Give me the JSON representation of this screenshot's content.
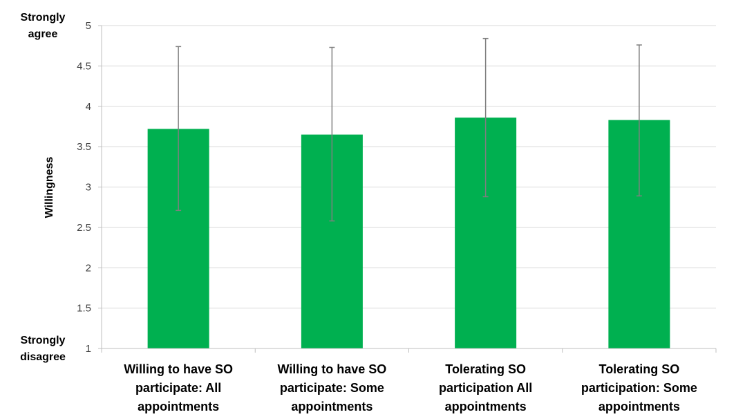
{
  "chart_data": {
    "type": "bar",
    "ylabel": "Willingness",
    "xlabel": "",
    "ylim": [
      1,
      5
    ],
    "yticks": [
      1,
      1.5,
      2,
      2.5,
      3,
      3.5,
      4,
      4.5,
      5
    ],
    "grid": true,
    "legend": "none",
    "bar_color": "#00B050",
    "error_bar_color": "#7f7f7f",
    "y_anchor_labels": {
      "top": [
        "Strongly",
        "agree"
      ],
      "bottom": [
        "Strongly",
        "disagree"
      ]
    },
    "categories": [
      [
        "Willing to have SO",
        "participate: All",
        "appointments"
      ],
      [
        "Willing to have SO",
        "participate: Some",
        "appointments"
      ],
      [
        "Tolerating SO",
        "participation All",
        "appointments"
      ],
      [
        "Tolerating SO",
        "participation: Some",
        "appointments"
      ]
    ],
    "values": [
      3.72,
      3.65,
      3.86,
      3.83
    ],
    "error_high": [
      4.74,
      4.73,
      4.84,
      4.76
    ],
    "error_low": [
      2.71,
      2.58,
      2.88,
      2.89
    ]
  }
}
